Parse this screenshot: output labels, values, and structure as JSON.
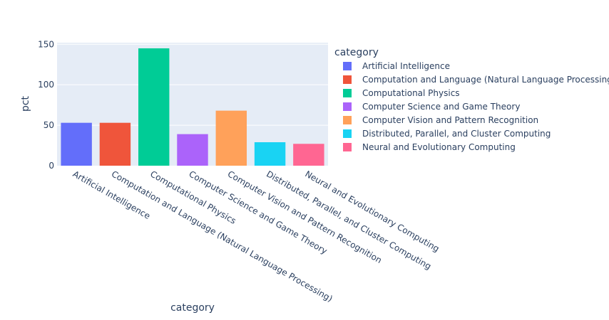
{
  "chart_data": {
    "type": "bar",
    "title": "",
    "xlabel": "category",
    "ylabel": "pct",
    "ylim": [
      0,
      152
    ],
    "yticks": [
      0,
      50,
      100,
      150
    ],
    "categories": [
      "Artificial Intelligence",
      "Computation and Language (Natural Language Processing)",
      "Computational Physics",
      "Computer Science and Game Theory",
      "Computer Vision and Pattern Recognition",
      "Distributed, Parallel, and Cluster Computing",
      "Neural and Evolutionary Computing"
    ],
    "values": [
      53,
      53,
      145,
      39,
      68,
      29,
      27
    ],
    "colors": [
      "#636efa",
      "#ef553b",
      "#00cc96",
      "#ab63fa",
      "#ffa15a",
      "#19d3f3",
      "#ff6692"
    ],
    "grid": true,
    "legend": {
      "title": "category",
      "placement": "right",
      "entries": [
        "Artificial Intelligence",
        "Computation and Language (Natural Language Processing)",
        "Computational Physics",
        "Computer Science and Game Theory",
        "Computer Vision and Pattern Recognition",
        "Distributed, Parallel, and Cluster Computing",
        "Neural and Evolutionary Computing"
      ]
    }
  }
}
